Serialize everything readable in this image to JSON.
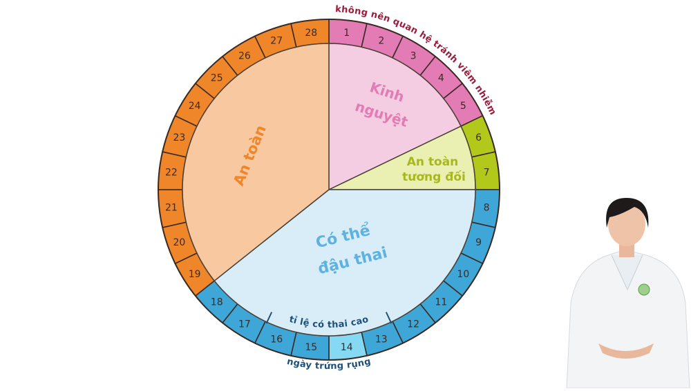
{
  "days": [
    1,
    2,
    3,
    4,
    5,
    6,
    7,
    8,
    9,
    10,
    11,
    12,
    13,
    14,
    15,
    16,
    17,
    18,
    19,
    20,
    21,
    22,
    23,
    24,
    25,
    26,
    27,
    28
  ],
  "sections": {
    "menstruation": [
      "Kinh",
      "nguyệt"
    ],
    "relatively_safe": [
      "An toàn",
      "tương đối"
    ],
    "fertile": [
      "Có thể",
      "đậu thai"
    ],
    "safe": "An toàn"
  },
  "notes": {
    "top": "không nên quan hệ tránh viêm nhiễm",
    "high_chance": "tỉ lệ có thai cao",
    "ovulation": "ngày trứng rụng"
  }
}
